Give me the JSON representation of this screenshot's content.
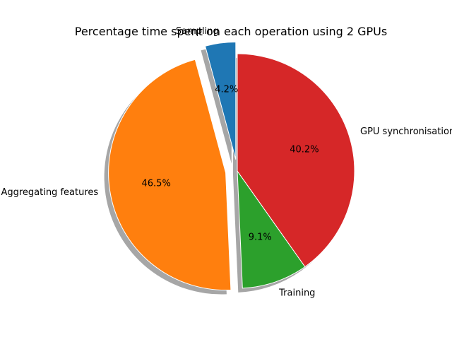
{
  "chart_data": {
    "type": "pie",
    "title": "Percentage time spent on each operation using 2 GPUs",
    "categories": [
      "Sampling",
      "Aggregating features",
      "Training",
      "GPU synchronisation"
    ],
    "values": [
      4.2,
      46.5,
      9.1,
      40.2
    ],
    "percent_labels": [
      "4.2%",
      "46.5%",
      "9.1%",
      "40.2%"
    ],
    "colors": [
      "#1f77b4",
      "#ff7f0e",
      "#2ca02c",
      "#d62728"
    ],
    "exploded": [
      true,
      true,
      false,
      false
    ],
    "shadow": true,
    "start_angle_deg": 90,
    "direction": "counterclockwise",
    "legend": "none"
  }
}
